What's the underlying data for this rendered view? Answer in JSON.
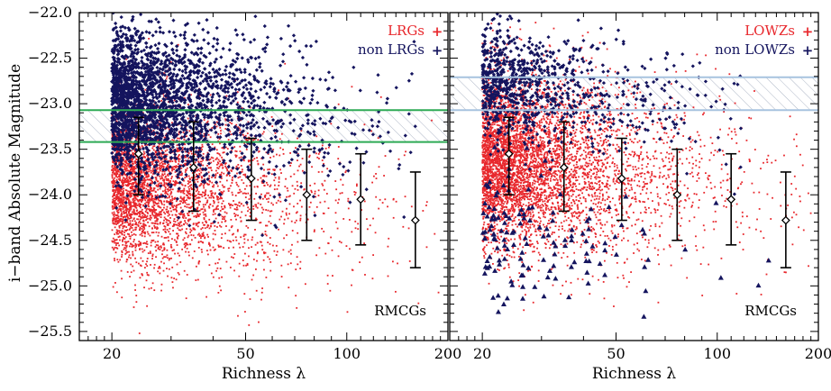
{
  "chart_data": [
    {
      "type": "scatter",
      "xscale": "log",
      "xlim": [
        16,
        200
      ],
      "ylim": [
        -22,
        -25.6
      ],
      "x_ticks": [
        20,
        50,
        100,
        200
      ],
      "y_ticks": [
        -22.0,
        -22.5,
        -23.0,
        -23.5,
        -24.0,
        -24.5,
        -25.0,
        -25.5
      ],
      "y_tick_labels": [
        "−22.0",
        "−22.5",
        "−23.0",
        "−23.5",
        "−24.0",
        "−24.5",
        "−25.0",
        "−25.5"
      ],
      "xlabel": "Richness λ",
      "ylabel": "i−band Absolute Magnitude",
      "annotation": "RMCGs",
      "legend": {
        "placement": "top-right",
        "entries": [
          {
            "label": "LRGs",
            "symbol": "+",
            "color": "#e8272c"
          },
          {
            "label": "non LRGs",
            "symbol": "+",
            "color": "#14145e"
          }
        ]
      },
      "series": [
        {
          "name": "LRGs",
          "color": "#e8272c",
          "marker": "dot",
          "approx_count": 3800,
          "x_range": [
            20,
            190
          ],
          "y_center": -23.85,
          "y_spread": 0.42
        },
        {
          "name": "non LRGs",
          "color": "#14145e",
          "marker": "diamond",
          "approx_count": 2600,
          "x_range": [
            20,
            160
          ],
          "y_center": -22.95,
          "y_spread": 0.38
        }
      ],
      "band": {
        "y": [
          -23.07,
          -23.42
        ],
        "edge_color": "#2eaa55",
        "hatch_color": "#aeb6c6"
      },
      "binned_medians": {
        "x": [
          24.0,
          35.0,
          52.0,
          76.0,
          110.0,
          160.0
        ],
        "y": [
          -23.55,
          -23.7,
          -23.82,
          -24.0,
          -24.05,
          -24.28
        ],
        "err_low": [
          -23.15,
          -23.2,
          -23.38,
          -23.5,
          -23.55,
          -23.75
        ],
        "err_high": [
          -24.0,
          -24.18,
          -24.28,
          -24.5,
          -24.55,
          -24.8
        ]
      }
    },
    {
      "type": "scatter",
      "xscale": "log",
      "xlim": [
        16,
        200
      ],
      "ylim": [
        -22,
        -25.6
      ],
      "x_ticks": [
        20,
        50,
        100,
        200
      ],
      "xlabel": "Richness λ",
      "annotation": "RMCGs",
      "legend": {
        "placement": "top-right",
        "entries": [
          {
            "label": "LOWZs",
            "symbol": "+",
            "color": "#e8272c"
          },
          {
            "label": "non LOWZs",
            "symbol": "+",
            "color": "#14145e"
          }
        ]
      },
      "series": [
        {
          "name": "LOWZs",
          "color": "#e8272c",
          "marker": "dot",
          "approx_count": 5200,
          "x_range": [
            20,
            190
          ],
          "y_center": -23.6,
          "y_spread": 0.45
        },
        {
          "name": "non LOWZs",
          "color": "#14145e",
          "marker": "diamond",
          "approx_count": 900,
          "x_range": [
            20,
            120
          ],
          "y_center": -22.75,
          "y_spread": 0.3
        },
        {
          "name": "non LOWZs (faint tail)",
          "color": "#14145e",
          "marker": "triangle",
          "approx_count": 140,
          "x_range": [
            20,
            190
          ],
          "y_center": -24.45,
          "y_spread": 0.35
        }
      ],
      "band": {
        "y": [
          -22.71,
          -23.07
        ],
        "edge_color": "#a7c3df",
        "hatch_color": "#aeb6c6"
      },
      "binned_medians": {
        "x": [
          24.0,
          35.0,
          52.0,
          76.0,
          110.0,
          160.0
        ],
        "y": [
          -23.55,
          -23.7,
          -23.82,
          -24.0,
          -24.05,
          -24.28
        ],
        "err_low": [
          -23.15,
          -23.2,
          -23.38,
          -23.5,
          -23.55,
          -23.75
        ],
        "err_high": [
          -24.0,
          -24.18,
          -24.28,
          -24.5,
          -24.55,
          -24.8
        ]
      }
    }
  ]
}
